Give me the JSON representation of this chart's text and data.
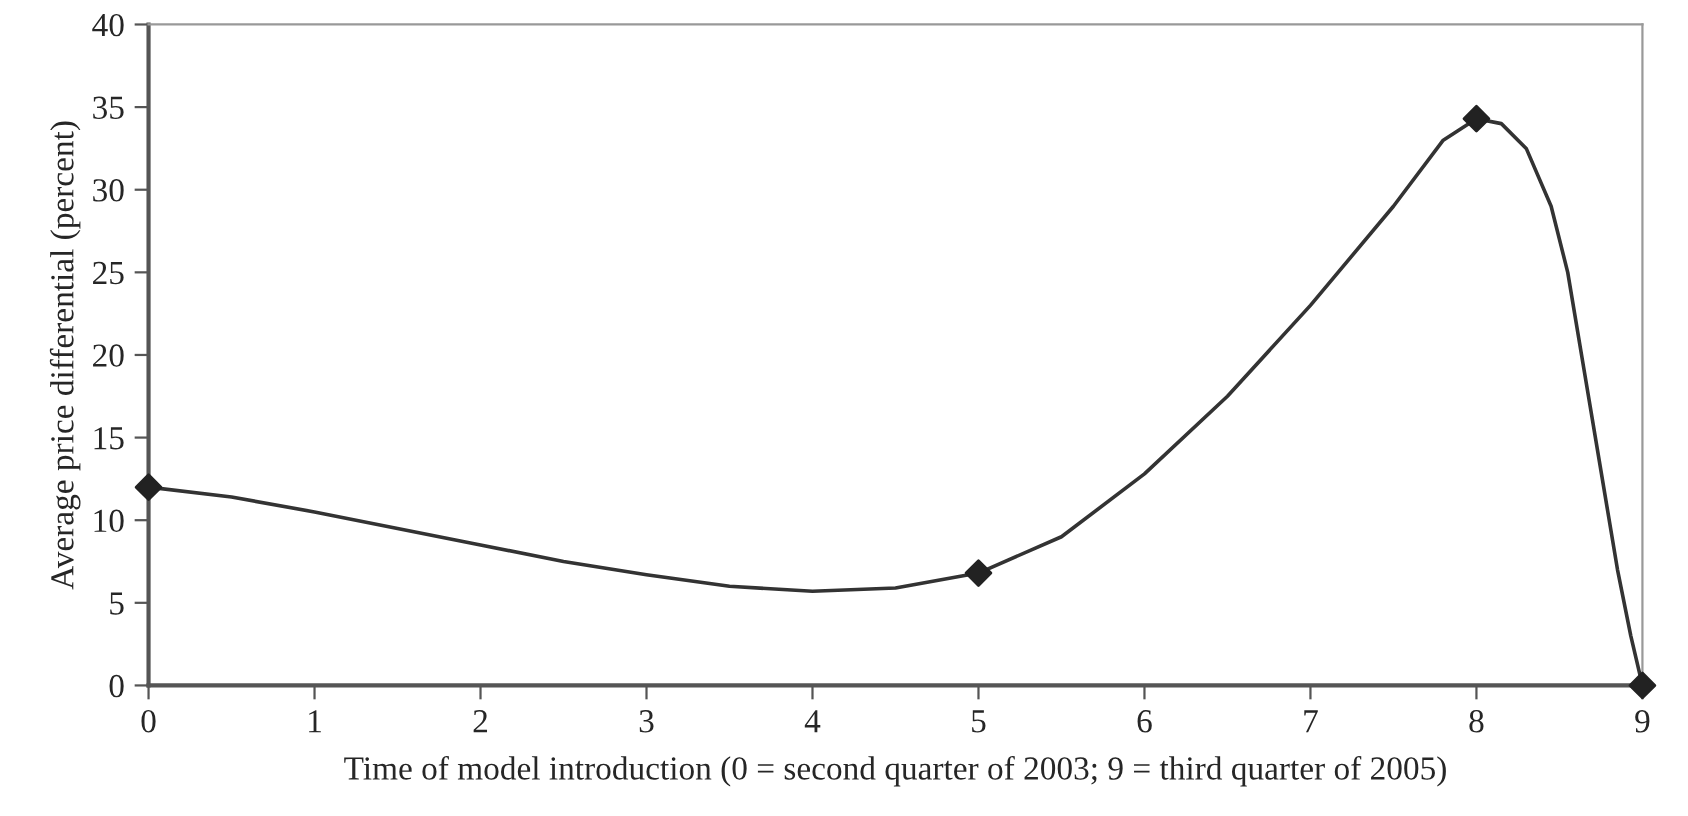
{
  "chart_data": {
    "type": "line",
    "xlabel": "Time of model introduction (0 = second quarter of 2003; 9 = third quarter of 2005)",
    "ylabel": "Average price differential (percent)",
    "series": [
      {
        "color": "#333333",
        "marker": "none",
        "x": [
          0,
          0.5,
          1,
          1.5,
          2,
          2.5,
          3,
          3.5,
          4,
          4.5,
          5,
          5.5,
          6,
          6.5,
          7,
          7.5,
          7.8,
          8,
          8.15,
          8.3,
          8.45,
          8.55,
          8.65,
          8.75,
          8.85,
          8.93,
          9
        ],
        "values": [
          12,
          11.4,
          10.5,
          9.5,
          8.5,
          7.5,
          6.7,
          6.0,
          5.7,
          5.9,
          6.8,
          9.0,
          12.8,
          17.5,
          23,
          29,
          33,
          34.3,
          34,
          32.5,
          29,
          25,
          19,
          13,
          7,
          3,
          0
        ]
      },
      {
        "type": "scatter",
        "color": "#222222",
        "marker": "diamond",
        "x": [
          0,
          5,
          8,
          9
        ],
        "values": [
          12,
          6.8,
          34.3,
          0
        ]
      }
    ],
    "xlim": [
      0,
      9
    ],
    "ylim": [
      0,
      40
    ],
    "xticks": [
      0,
      1,
      2,
      3,
      4,
      5,
      6,
      7,
      8,
      9
    ],
    "yticks": [
      0,
      5,
      10,
      15,
      20,
      25,
      30,
      35,
      40
    ],
    "grid": false,
    "legend": false
  }
}
